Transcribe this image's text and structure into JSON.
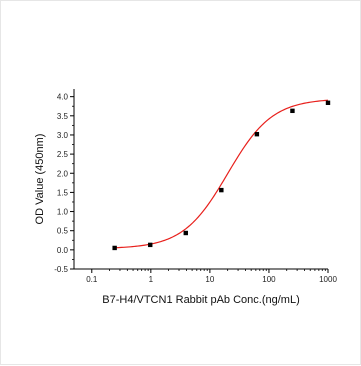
{
  "chart_data": {
    "type": "scatter",
    "title": "",
    "xlabel": "B7-H4/VTCN1 Rabbit pAb Conc.(ng/mL)",
    "ylabel": "OD Value (450nm)",
    "x_scale": "log",
    "xlim": [
      0.05,
      1000
    ],
    "ylim": [
      -0.5,
      4.2
    ],
    "x_ticks": [
      0.1,
      1,
      10,
      100,
      1000
    ],
    "x_tick_labels": [
      "0.1",
      "1",
      "10",
      "100",
      "1000"
    ],
    "y_ticks": [
      -0.5,
      0.0,
      0.5,
      1.0,
      1.5,
      2.0,
      2.5,
      3.0,
      3.5,
      4.0
    ],
    "y_tick_labels": [
      "-0.5",
      "0.0",
      "0.5",
      "1.0",
      "1.5",
      "2.0",
      "2.5",
      "3.0",
      "3.5",
      "4.0"
    ],
    "grid": false,
    "legend": "none",
    "series": [
      {
        "x": [
          0.244,
          0.977,
          3.906,
          15.625,
          62.5,
          250,
          1000
        ],
        "y": [
          0.05,
          0.13,
          0.44,
          1.56,
          3.02,
          3.63,
          3.84
        ],
        "marker_color": "#000000",
        "fit_color": "#e8201c",
        "fit": {
          "model": "4PL",
          "bottom": 0.03,
          "top": 3.95,
          "ec50": 20,
          "hill": 1.15
        }
      }
    ]
  }
}
